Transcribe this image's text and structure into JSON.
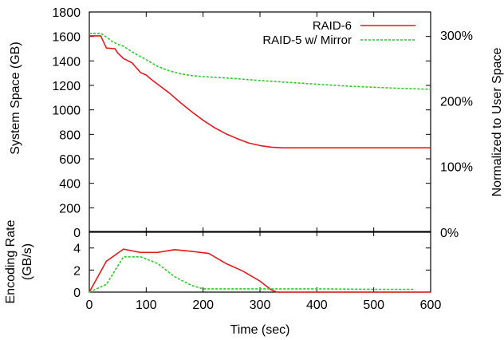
{
  "chart_data": [
    {
      "type": "line",
      "panel": "top",
      "xlim": [
        0,
        600
      ],
      "ylim": [
        0,
        1800
      ],
      "ylabel": "System Space (GB)",
      "y2label": "Normalized to User Space",
      "yticks": [
        "0",
        "200",
        "400",
        "600",
        "800",
        "1000",
        "1200",
        "1400",
        "1600",
        "1800"
      ],
      "ytick_values": [
        0,
        200,
        400,
        600,
        800,
        1000,
        1200,
        1400,
        1600,
        1800
      ],
      "y2ticks": [
        "0%",
        "100%",
        "200%",
        "300%"
      ],
      "y2tick_values": [
        0,
        537,
        1074,
        1611
      ],
      "legend_position": "top-right",
      "series": [
        {
          "name": "RAID-6",
          "color": "#e41a1c",
          "style": "solid",
          "x": [
            0,
            20,
            30,
            45,
            50,
            60,
            75,
            90,
            100,
            110,
            120,
            140,
            160,
            180,
            200,
            220,
            240,
            260,
            280,
            300,
            320,
            340,
            400,
            500,
            600
          ],
          "y": [
            1605,
            1605,
            1505,
            1500,
            1465,
            1420,
            1385,
            1305,
            1285,
            1245,
            1210,
            1140,
            1060,
            985,
            915,
            855,
            805,
            765,
            730,
            708,
            695,
            690,
            690,
            690,
            690
          ]
        },
        {
          "name": "RAID-5 w/ Mirror",
          "color": "#1fd11f",
          "style": "dashed",
          "x": [
            0,
            20,
            30,
            40,
            50,
            60,
            70,
            80,
            100,
            120,
            140,
            160,
            180,
            200,
            250,
            300,
            350,
            400,
            450,
            500,
            550,
            600
          ],
          "y": [
            1625,
            1625,
            1595,
            1560,
            1535,
            1520,
            1490,
            1460,
            1410,
            1355,
            1320,
            1295,
            1280,
            1272,
            1258,
            1240,
            1225,
            1210,
            1195,
            1185,
            1175,
            1168
          ]
        }
      ]
    },
    {
      "type": "line",
      "panel": "bottom",
      "xlim": [
        0,
        600
      ],
      "ylim": [
        0,
        5.5
      ],
      "xlabel": "Time (sec)",
      "ylabel_lines": [
        "Encoding Rate",
        "(GB/s)"
      ],
      "xticks": [
        "0",
        "100",
        "200",
        "300",
        "400",
        "500",
        "600"
      ],
      "xtick_values": [
        0,
        100,
        200,
        300,
        400,
        500,
        600
      ],
      "yticks": [
        "0",
        "2",
        "4"
      ],
      "ytick_values": [
        0,
        2,
        4
      ],
      "series": [
        {
          "name": "RAID-6",
          "color": "#e41a1c",
          "style": "solid",
          "x": [
            0,
            30,
            60,
            90,
            120,
            150,
            180,
            210,
            240,
            270,
            300,
            320,
            330,
            400,
            500,
            600
          ],
          "y": [
            0,
            2.8,
            3.9,
            3.6,
            3.6,
            3.85,
            3.7,
            3.5,
            2.6,
            1.9,
            1.0,
            0.2,
            0,
            0,
            0,
            0
          ]
        },
        {
          "name": "RAID-5 w/ Mirror",
          "color": "#1fd11f",
          "style": "dashed",
          "x": [
            0,
            30,
            60,
            90,
            120,
            150,
            180,
            200,
            210,
            240,
            300,
            350,
            400,
            500,
            570
          ],
          "y": [
            0,
            0.7,
            3.2,
            3.2,
            2.6,
            1.4,
            0.6,
            0.3,
            0.3,
            0.3,
            0.3,
            0.3,
            0.3,
            0.25,
            0.25
          ]
        }
      ]
    }
  ]
}
